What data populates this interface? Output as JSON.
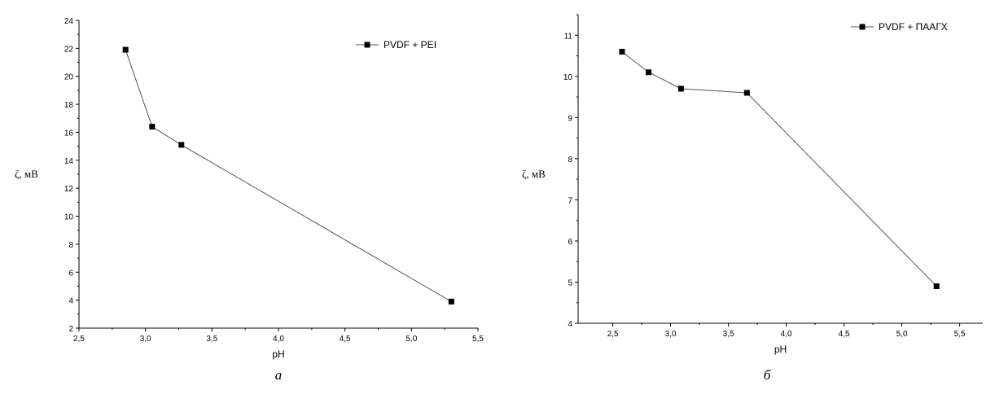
{
  "chart_data": [
    {
      "type": "line",
      "xlabel": "pH",
      "ylabel": "ζ, мВ",
      "xlim": [
        2.5,
        5.5
      ],
      "ylim": [
        2,
        24
      ],
      "x_ticks": [
        "2,5",
        "3,0",
        "3,5",
        "4,0",
        "4,5",
        "5,0",
        "5,5"
      ],
      "y_ticks": [
        "2",
        "4",
        "6",
        "8",
        "10",
        "12",
        "14",
        "16",
        "18",
        "20",
        "22",
        "24"
      ],
      "legend": "top-right",
      "grid": false,
      "caption": "а",
      "series": [
        {
          "name": "PVDF + PEI",
          "x": [
            2.85,
            3.05,
            3.27,
            5.3
          ],
          "y": [
            21.9,
            16.4,
            15.1,
            3.9
          ]
        }
      ]
    },
    {
      "type": "line",
      "xlabel": "pH",
      "ylabel": "ζ, мВ",
      "xlim": [
        2.2,
        5.7
      ],
      "ylim": [
        4,
        11.5
      ],
      "x_ticks": [
        "2,5",
        "3,0",
        "3,5",
        "4,0",
        "4,5",
        "5,0",
        "5,5"
      ],
      "y_ticks": [
        "4",
        "5",
        "6",
        "7",
        "8",
        "9",
        "10",
        "11"
      ],
      "legend": "top-right",
      "grid": false,
      "caption": "б",
      "series": [
        {
          "name": "PVDF + ПААГХ",
          "x": [
            2.58,
            2.81,
            3.09,
            3.66,
            5.3
          ],
          "y": [
            10.6,
            10.1,
            9.7,
            9.6,
            4.9
          ]
        }
      ]
    }
  ]
}
